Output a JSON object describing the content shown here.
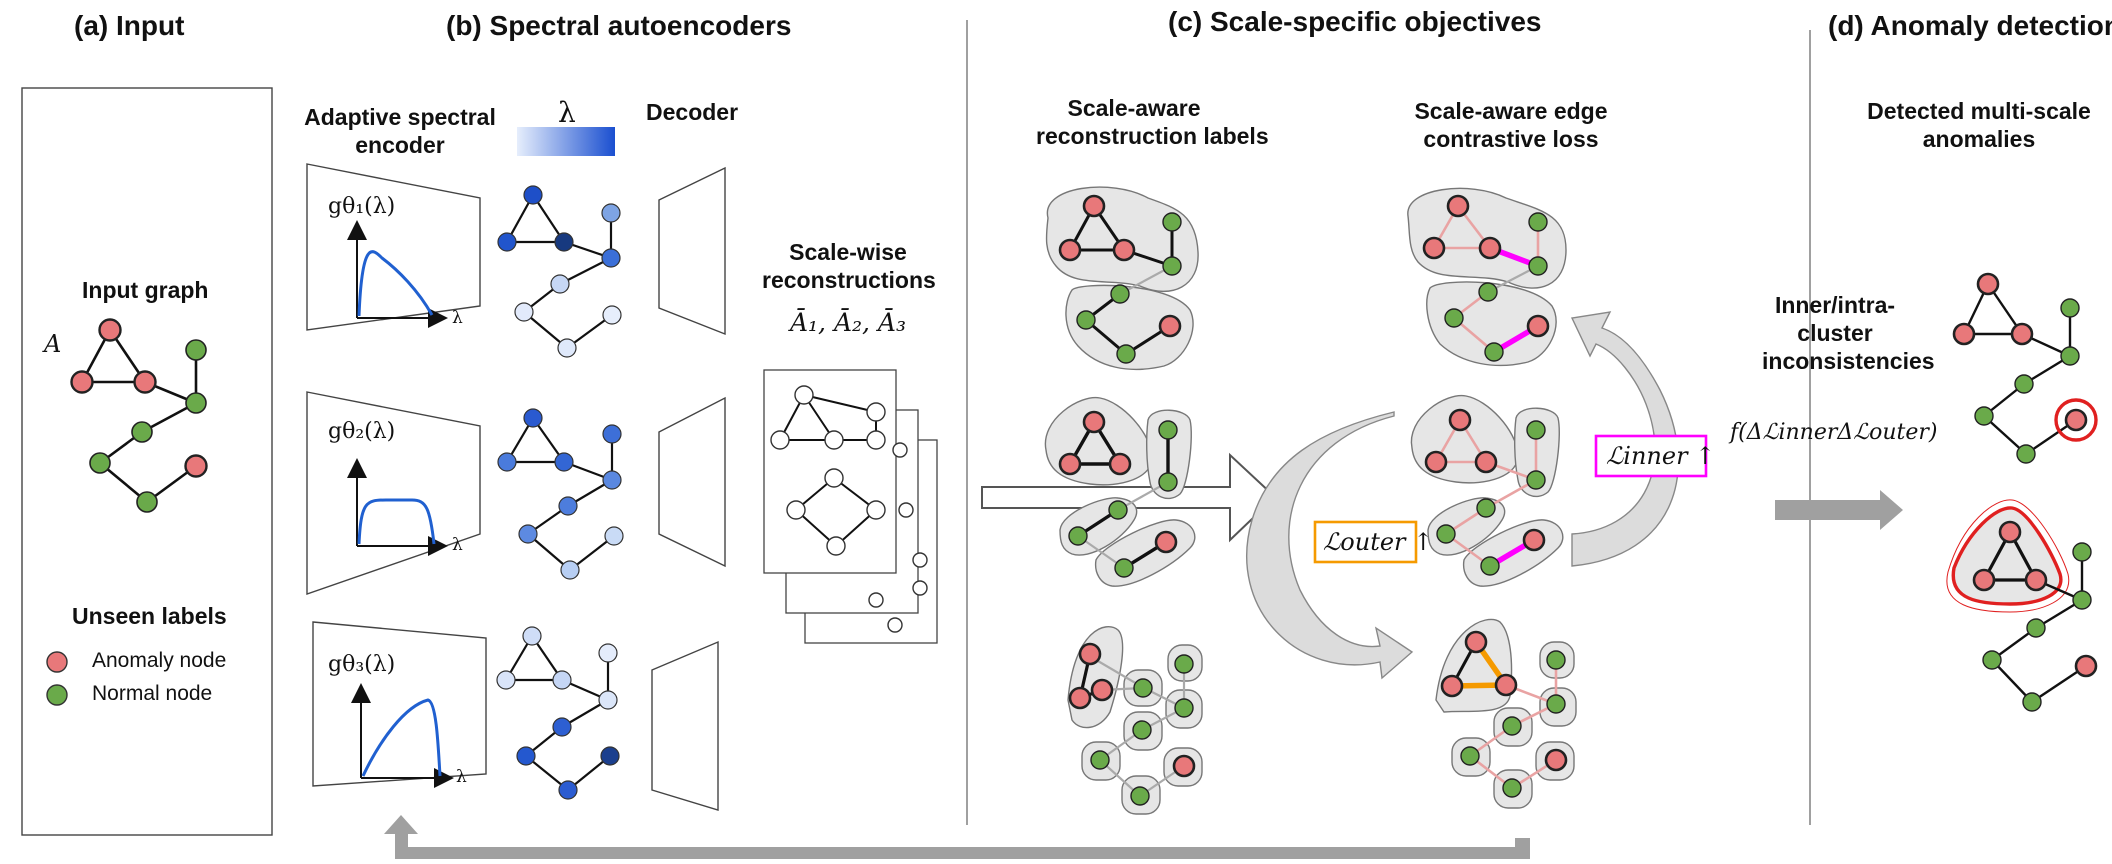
{
  "sections": {
    "a": "(a) Input",
    "b": "(b) Spectral autoencoders",
    "c": "(c) Scale-specific objectives",
    "d": "(d) Anomaly detection"
  },
  "input": {
    "graph_title": "Input graph",
    "matrix_symbol": "A",
    "legend_title": "Unseen labels",
    "legend_anomaly": "Anomaly node",
    "legend_normal": "Normal node"
  },
  "encoder": {
    "title_line1": "Adaptive spectral",
    "title_line2": "encoder",
    "lambda_symbol": "λ",
    "filter1": "gθ₁(λ)",
    "filter2": "gθ₂(λ)",
    "filter3": "gθ₃(λ)",
    "axis_lambda": "λ"
  },
  "decoder": {
    "title": "Decoder"
  },
  "reconstructions": {
    "title_line1": "Scale-wise",
    "title_line2": "reconstructions",
    "symbols": "Ā₁, Ā₂, Ā₃"
  },
  "objectives": {
    "recon_line1": "Scale-aware",
    "recon_line2": "reconstruction labels",
    "contrast_line1": "Scale-aware edge",
    "contrast_line2": "contrastive loss",
    "loss_outer": "ℒouter ↑",
    "loss_inner": "ℒinner ↑"
  },
  "detection": {
    "inconsistency_line1": "Inner/intra-",
    "inconsistency_line2": "cluster",
    "inconsistency_line3": "inconsistencies",
    "formula": "f(ΔℒinnerΔℒouter)",
    "result_line1": "Detected multi-scale",
    "result_line2": "anomalies"
  },
  "colors": {
    "anomaly": "#e8787a",
    "normal": "#6aaa4a",
    "cluster_fill": "#e6e6e6",
    "inner_edge": "#ff00ff",
    "outer_edge": "#f59a00",
    "soft_edge": "#e9a3a3",
    "arrow_gray": "#a0a0a0",
    "blue_dark": "#1e4fc8",
    "blue_light": "#dfe9fb",
    "highlight_red": "#e02020"
  }
}
